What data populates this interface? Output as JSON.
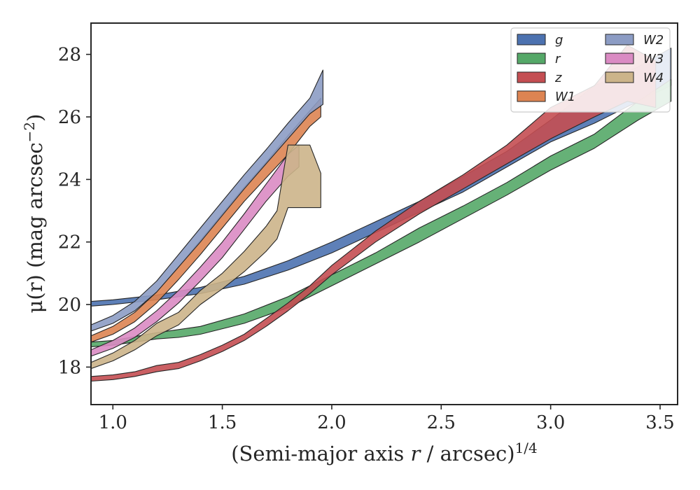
{
  "chart_data": {
    "type": "area",
    "title": "",
    "xlabel": "(Semi-major axis r / arcsec)",
    "xlabel_italic_part": "r",
    "xlabel_exponent": "1/4",
    "ylabel": "μ(r) (mag arcsec",
    "ylabel_exponent": "−2",
    "xlim": [
      0.9,
      3.58
    ],
    "ylim": [
      29.0,
      16.8
    ],
    "y_inverted": true,
    "xticks": [
      1.0,
      1.5,
      2.0,
      2.5,
      3.0,
      3.5
    ],
    "xtick_labels": [
      "1.0",
      "1.5",
      "2.0",
      "2.5",
      "3.0",
      "3.5"
    ],
    "yticks": [
      18,
      20,
      22,
      24,
      26,
      28
    ],
    "ytick_labels": [
      "18",
      "20",
      "22",
      "24",
      "26",
      "28"
    ],
    "grid": false,
    "legend_position": "top-right",
    "legend_columns": 2,
    "series": [
      {
        "name": "g",
        "color": "#4c72b0",
        "x": [
          0.9,
          1.0,
          1.2,
          1.4,
          1.6,
          1.8,
          2.0,
          2.2,
          2.4,
          2.6,
          2.8,
          3.0,
          3.2,
          3.4,
          3.55
        ],
        "lower": [
          19.95,
          20.0,
          20.15,
          20.35,
          20.65,
          21.1,
          21.65,
          22.3,
          22.95,
          23.6,
          24.4,
          25.2,
          25.8,
          26.5,
          27.0
        ],
        "upper": [
          20.1,
          20.15,
          20.3,
          20.55,
          20.9,
          21.4,
          22.0,
          22.65,
          23.3,
          24.1,
          24.9,
          25.9,
          27.0,
          27.6,
          28.2
        ]
      },
      {
        "name": "r",
        "color": "#55a868",
        "x": [
          0.9,
          1.0,
          1.2,
          1.3,
          1.4,
          1.6,
          1.8,
          2.0,
          2.2,
          2.4,
          2.6,
          2.8,
          3.0,
          3.2,
          3.4,
          3.55
        ],
        "lower": [
          18.65,
          18.7,
          18.9,
          18.95,
          19.05,
          19.4,
          19.9,
          20.6,
          21.3,
          22.0,
          22.75,
          23.5,
          24.3,
          25.0,
          25.9,
          26.5
        ],
        "upper": [
          18.8,
          18.85,
          19.1,
          19.2,
          19.3,
          19.7,
          20.25,
          20.95,
          21.65,
          22.45,
          23.15,
          23.9,
          24.75,
          25.45,
          26.5,
          27.2
        ]
      },
      {
        "name": "z",
        "color": "#c44e52",
        "x": [
          0.9,
          1.0,
          1.1,
          1.2,
          1.3,
          1.4,
          1.5,
          1.6,
          1.7,
          1.8,
          1.9,
          2.0,
          2.2,
          2.4,
          2.6,
          2.8,
          3.0,
          3.2,
          3.35,
          3.48
        ],
        "lower": [
          17.55,
          17.6,
          17.7,
          17.85,
          17.95,
          18.2,
          18.5,
          18.85,
          19.3,
          19.8,
          20.35,
          20.95,
          22.0,
          22.9,
          23.7,
          24.5,
          25.3,
          26.0,
          26.5,
          26.3
        ],
        "upper": [
          17.7,
          17.75,
          17.85,
          18.05,
          18.15,
          18.4,
          18.7,
          19.05,
          19.55,
          20.05,
          20.6,
          21.25,
          22.35,
          23.3,
          24.15,
          25.1,
          26.3,
          27.0,
          28.3,
          27.8
        ]
      },
      {
        "name": "W1",
        "color": "#dd8452",
        "x": [
          0.9,
          1.0,
          1.1,
          1.2,
          1.3,
          1.4,
          1.5,
          1.6,
          1.7,
          1.8,
          1.9,
          1.95
        ],
        "lower": [
          18.8,
          19.05,
          19.45,
          20.05,
          20.8,
          21.6,
          22.45,
          23.3,
          24.05,
          24.8,
          25.7,
          26.0
        ],
        "upper": [
          19.0,
          19.3,
          19.75,
          20.4,
          21.2,
          22.05,
          22.9,
          23.75,
          24.55,
          25.4,
          26.2,
          26.6
        ]
      },
      {
        "name": "W2",
        "color": "#8c9cc4",
        "x": [
          0.9,
          1.0,
          1.1,
          1.2,
          1.3,
          1.4,
          1.5,
          1.6,
          1.7,
          1.8,
          1.9,
          1.96
        ],
        "lower": [
          19.15,
          19.4,
          19.8,
          20.4,
          21.2,
          22.0,
          22.85,
          23.7,
          24.5,
          25.3,
          26.1,
          26.4
        ],
        "upper": [
          19.35,
          19.65,
          20.1,
          20.75,
          21.6,
          22.45,
          23.3,
          24.15,
          24.95,
          25.8,
          26.6,
          27.5
        ]
      },
      {
        "name": "W3",
        "color": "#da8bc3",
        "x": [
          0.9,
          1.0,
          1.1,
          1.2,
          1.3,
          1.4,
          1.5,
          1.6,
          1.7,
          1.8,
          1.85
        ],
        "lower": [
          18.35,
          18.6,
          18.95,
          19.45,
          20.05,
          20.75,
          21.5,
          22.4,
          23.3,
          24.1,
          24.4
        ],
        "upper": [
          18.55,
          18.85,
          19.25,
          19.8,
          20.45,
          21.2,
          22.0,
          22.9,
          23.85,
          24.8,
          25.1
        ]
      },
      {
        "name": "W4",
        "color": "#ccb48a",
        "x": [
          0.9,
          1.0,
          1.1,
          1.2,
          1.3,
          1.4,
          1.5,
          1.6,
          1.7,
          1.75,
          1.8,
          1.9,
          1.95
        ],
        "lower": [
          17.95,
          18.2,
          18.55,
          19.0,
          19.35,
          20.0,
          20.5,
          21.05,
          21.7,
          22.1,
          23.1,
          23.1,
          23.1
        ],
        "upper": [
          18.15,
          18.45,
          18.85,
          19.4,
          19.75,
          20.45,
          21.0,
          21.7,
          22.5,
          23.0,
          25.1,
          25.1,
          24.2
        ]
      }
    ]
  }
}
